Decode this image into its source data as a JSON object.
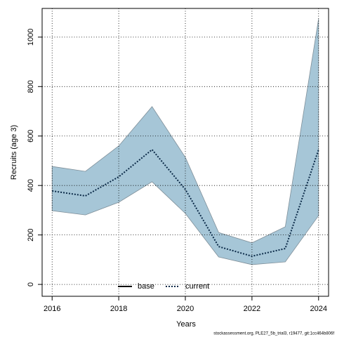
{
  "chart_data": {
    "type": "line",
    "xlabel": "Years",
    "ylabel": "Recruits (age 3)",
    "footnote": "stockassessment.org, PLE27_5b_trial3, r19477, git:1cc464b806f",
    "x": [
      2016,
      2017,
      2018,
      2019,
      2020,
      2021,
      2022,
      2023,
      2024
    ],
    "series": [
      {
        "name": "current",
        "color": "#0b2a48",
        "style": "dotted",
        "values": [
          378,
          358,
          435,
          545,
          384,
          153,
          114,
          145,
          545
        ]
      }
    ],
    "band": {
      "color": "#a6c6d7",
      "edge": "#7f8f99",
      "upper": [
        477,
        457,
        560,
        719,
        514,
        210,
        168,
        233,
        1074
      ],
      "lower": [
        298,
        281,
        332,
        415,
        287,
        111,
        80,
        91,
        278
      ]
    },
    "legend": [
      {
        "name": "base",
        "color": "#000000",
        "style": "solid"
      },
      {
        "name": "current",
        "color": "#0b2a48",
        "style": "dotted"
      }
    ],
    "xlim": [
      2015.7,
      2024.3
    ],
    "ylim": [
      -48,
      1116
    ],
    "xticks": [
      2016,
      2018,
      2020,
      2022,
      2024
    ],
    "yticks": [
      0,
      200,
      400,
      600,
      800,
      1000
    ],
    "grid": true
  }
}
